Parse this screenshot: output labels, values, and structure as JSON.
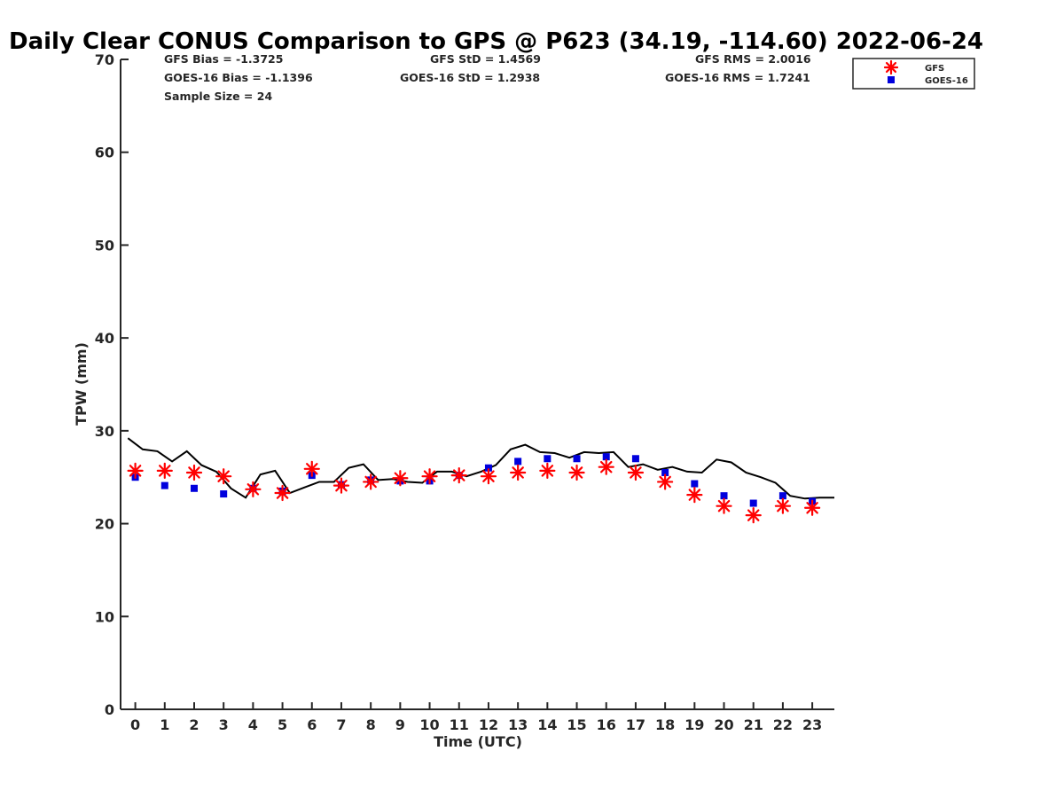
{
  "chart_data": {
    "type": "scatter",
    "title": "Daily Clear CONUS Comparison to GPS @ P623 (34.19, -114.60) 2022-06-24",
    "xlabel": "Time (UTC)",
    "ylabel": "TPW (mm)",
    "xlim": [
      -0.5,
      23.75
    ],
    "ylim": [
      0,
      70
    ],
    "xticks": [
      0,
      1,
      2,
      3,
      4,
      5,
      6,
      7,
      8,
      9,
      10,
      11,
      12,
      13,
      14,
      15,
      16,
      17,
      18,
      19,
      20,
      21,
      22,
      23
    ],
    "yticks": [
      0,
      10,
      20,
      30,
      40,
      50,
      60,
      70
    ],
    "grid": false,
    "legend_position": "top-right, outside plot",
    "stats": {
      "gfs_bias": "GFS Bias = -1.3725",
      "goes_bias": "GOES-16 Bias = -1.1396",
      "sample_size": "Sample Size = 24",
      "gfs_std": "GFS StD = 1.4569",
      "goes_std": "GOES-16 StD = 1.2938",
      "gfs_rms": "GFS RMS = 2.0016",
      "goes_rms": "GOES-16 RMS = 1.7241"
    },
    "series": [
      {
        "name": "GFS",
        "marker": "asterisk",
        "color": "#ff0000",
        "x": [
          0,
          1,
          2,
          3,
          4,
          5,
          6,
          7,
          8,
          9,
          10,
          11,
          12,
          13,
          14,
          15,
          16,
          17,
          18,
          19,
          20,
          21,
          22,
          23
        ],
        "y": [
          25.7,
          25.7,
          25.5,
          25.1,
          23.7,
          23.3,
          25.9,
          24.1,
          24.5,
          24.9,
          25.1,
          25.2,
          25.1,
          25.5,
          25.7,
          25.5,
          26.1,
          25.5,
          24.5,
          23.1,
          21.9,
          20.9,
          21.9,
          21.7
        ]
      },
      {
        "name": "GOES-16",
        "marker": "square",
        "color": "#0000dd",
        "x": [
          0,
          1,
          2,
          3,
          4,
          5,
          6,
          7,
          8,
          9,
          10,
          11,
          12,
          13,
          14,
          15,
          16,
          17,
          18,
          19,
          20,
          21,
          22,
          23
        ],
        "y": [
          25.0,
          24.1,
          23.8,
          23.2,
          23.8,
          23.5,
          25.2,
          24.2,
          24.7,
          24.6,
          24.6,
          25.2,
          26.0,
          26.7,
          27.0,
          27.0,
          27.2,
          27.0,
          25.5,
          24.3,
          23.0,
          22.2,
          23.0,
          22.4
        ]
      },
      {
        "name": "GPS",
        "marker": "line",
        "color": "#000000",
        "x": [
          -0.25,
          0.25,
          0.75,
          1.25,
          1.75,
          2.25,
          2.75,
          3.25,
          3.75,
          4.25,
          4.75,
          5.25,
          5.75,
          6.25,
          6.75,
          7.25,
          7.75,
          8.25,
          8.75,
          9.25,
          9.75,
          10.25,
          10.75,
          11.25,
          11.75,
          12.25,
          12.75,
          13.25,
          13.75,
          14.25,
          14.75,
          15.25,
          15.75,
          16.25,
          16.75,
          17.25,
          17.75,
          18.25,
          18.75,
          19.25,
          19.75,
          20.25,
          20.75,
          21.25,
          21.75,
          22.25,
          22.75,
          23.25,
          23.75
        ],
        "y": [
          29.2,
          28.0,
          27.8,
          26.7,
          27.8,
          26.3,
          25.6,
          23.8,
          22.8,
          25.3,
          25.7,
          23.3,
          23.9,
          24.5,
          24.5,
          26.0,
          26.4,
          24.7,
          24.8,
          24.5,
          24.4,
          25.6,
          25.6,
          25.1,
          25.6,
          26.3,
          28.0,
          28.5,
          27.7,
          27.6,
          27.1,
          27.7,
          27.6,
          27.7,
          26.1,
          26.4,
          25.8,
          26.1,
          25.6,
          25.5,
          26.9,
          26.6,
          25.5,
          25.0,
          24.4,
          23.0,
          22.7,
          22.8,
          22.8
        ]
      }
    ]
  }
}
